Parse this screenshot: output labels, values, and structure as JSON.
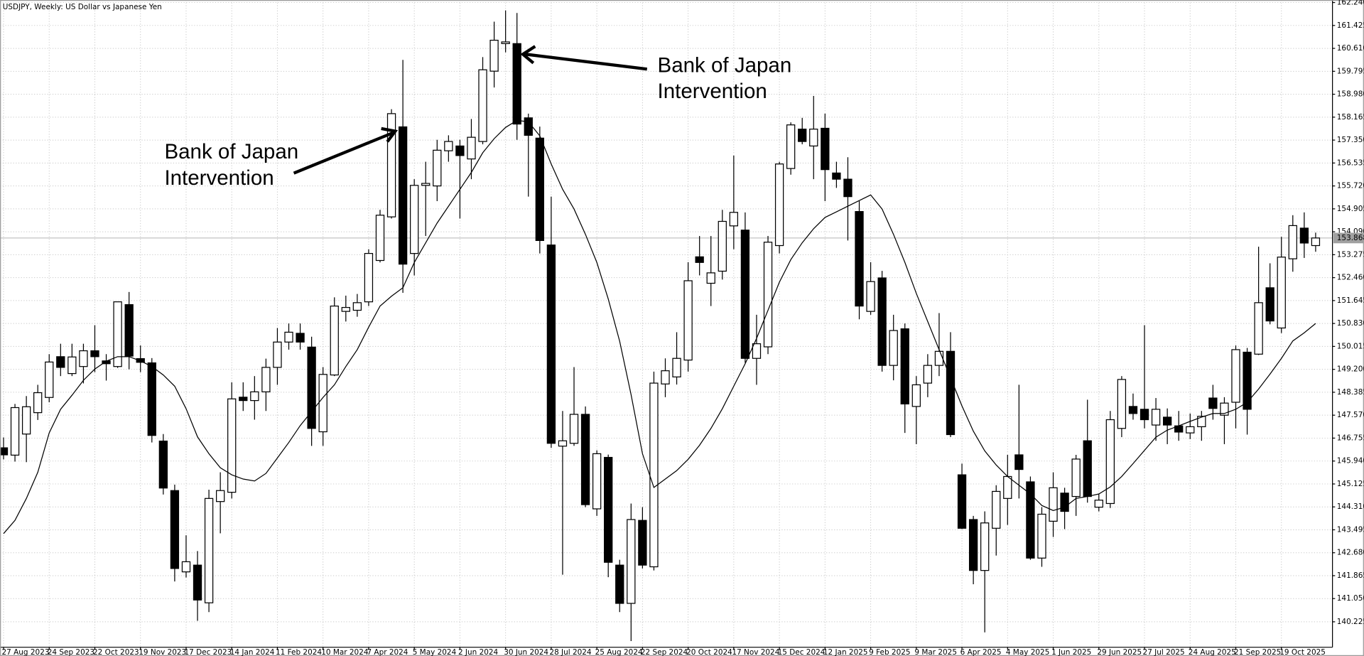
{
  "chart_data": {
    "type": "candlestick",
    "title": "USDJPY, Weekly:  US Dollar vs Japanese Yen",
    "categories": [
      "27 Aug 2023",
      null,
      null,
      null,
      "24 Sep 2023",
      null,
      null,
      null,
      "22 Oct 2023",
      null,
      null,
      null,
      "19 Nov 2023",
      null,
      null,
      null,
      "17 Dec 2023",
      null,
      null,
      null,
      "14 Jan 2024",
      null,
      null,
      null,
      "11 Feb 2024",
      null,
      null,
      null,
      "10 Mar 2024",
      null,
      null,
      null,
      "7 Apr 2024",
      null,
      null,
      null,
      "5 May 2024",
      null,
      null,
      null,
      "2 Jun 2024",
      null,
      null,
      null,
      "30 Jun 2024",
      null,
      null,
      null,
      "28 Jul 2024",
      null,
      null,
      null,
      "25 Aug 2024",
      null,
      null,
      null,
      "22 Sep 2024",
      null,
      null,
      null,
      "20 Oct 2024",
      null,
      null,
      null,
      "17 Nov 2024",
      null,
      null,
      null,
      "15 Dec 2024",
      null,
      null,
      null,
      "12 Jan 2025",
      null,
      null,
      null,
      "9 Feb 2025",
      null,
      null,
      null,
      "9 Mar 2025",
      null,
      null,
      null,
      "6 Apr 2025",
      null,
      null,
      null,
      "4 May 2025",
      null,
      null,
      null,
      "1 Jun 2025",
      null,
      null,
      null,
      "29 Jun 2025",
      null,
      null,
      null,
      "27 Jul 2025",
      null,
      null,
      null,
      "24 Aug 2025",
      null,
      null,
      null,
      "21 Sep 2025",
      null,
      null,
      null,
      "19 Oct 2025",
      null,
      null,
      null
    ],
    "open": [
      146.41,
      146.15,
      146.9,
      147.66,
      148.2,
      149.65,
      149.05,
      149.3,
      149.86,
      149.5,
      149.3,
      151.5,
      149.58,
      149.43,
      146.65,
      144.89,
      142.0,
      142.24,
      140.9,
      144.5,
      144.83,
      148.21,
      148.09,
      148.4,
      149.27,
      150.17,
      150.48,
      149.99,
      146.98,
      149.0,
      151.26,
      151.3,
      151.6,
      153.07,
      154.62,
      157.82,
      153.32,
      155.74,
      155.72,
      156.97,
      157.14,
      156.68,
      157.3,
      159.8,
      160.78,
      160.78,
      158.14,
      157.42,
      153.62,
      146.47,
      146.57,
      147.6,
      144.24,
      146.07,
      142.24,
      140.88,
      143.83,
      142.18,
      148.68,
      148.93,
      149.53,
      153.2,
      152.26,
      152.69,
      154.3,
      154.15,
      149.59,
      150.0,
      153.6,
      156.34,
      157.74,
      157.14,
      157.77,
      156.18,
      155.96,
      154.81,
      151.26,
      152.45,
      149.34,
      150.64,
      147.88,
      148.71,
      149.34,
      149.84,
      145.45,
      143.86,
      142.05,
      143.55,
      144.61,
      146.16,
      145.2,
      142.49,
      143.8,
      144.8,
      144.68,
      146.66,
      144.3,
      144.43,
      147.1,
      147.88,
      147.78,
      147.22,
      147.5,
      147.19,
      146.94,
      147.16,
      148.18,
      147.57,
      148.03,
      149.81,
      149.74,
      152.1,
      150.67,
      153.13,
      154.22,
      153.6
    ],
    "high": [
      146.78,
      147.97,
      148.25,
      148.65,
      149.74,
      150.11,
      150.11,
      150.11,
      150.77,
      149.74,
      151.6,
      151.95,
      150.05,
      149.6,
      146.9,
      145.1,
      143.3,
      142.74,
      144.92,
      145.54,
      148.74,
      148.74,
      148.96,
      149.58,
      150.67,
      150.83,
      150.83,
      150.36,
      149.28,
      151.76,
      151.82,
      151.88,
      153.47,
      154.87,
      158.45,
      160.2,
      155.96,
      156.58,
      157.36,
      157.52,
      157.36,
      158.1,
      160.3,
      161.56,
      161.96,
      161.87,
      158.29,
      157.83,
      155.34,
      147.72,
      149.28,
      147.88,
      146.32,
      146.17,
      142.43,
      144.43,
      144.3,
      149.12,
      149.59,
      150.52,
      153.01,
      153.94,
      153.94,
      154.87,
      156.8,
      154.78,
      151.14,
      153.94,
      156.58,
      157.98,
      158.14,
      158.92,
      158.29,
      156.58,
      156.74,
      155.18,
      153.01,
      152.7,
      151.14,
      150.83,
      148.96,
      149.74,
      151.2,
      150.52,
      145.85,
      143.99,
      144.15,
      145.08,
      146.16,
      148.65,
      145.39,
      144.3,
      145.54,
      144.99,
      146.16,
      148.12,
      144.77,
      147.72,
      148.96,
      148.34,
      150.77,
      148.18,
      147.81,
      147.72,
      147.63,
      147.72,
      148.65,
      148.21,
      150.05,
      149.96,
      153.56,
      152.97,
      153.91,
      154.68,
      154.78,
      154.06
    ],
    "low": [
      146.0,
      145.92,
      145.9,
      147.4,
      148.03,
      148.96,
      148.96,
      148.7,
      149.1,
      148.8,
      149.25,
      149.2,
      149.1,
      146.6,
      144.75,
      141.66,
      141.8,
      140.26,
      140.57,
      143.37,
      144.61,
      147.72,
      147.41,
      147.72,
      148.65,
      149.9,
      149.9,
      146.48,
      146.48,
      148.96,
      150.9,
      151.07,
      151.45,
      153.0,
      154.56,
      151.92,
      152.54,
      153.94,
      155.18,
      156.58,
      154.56,
      155.96,
      157.2,
      159.22,
      160.47,
      157.36,
      155.34,
      153.32,
      146.41,
      141.9,
      146.48,
      144.3,
      143.99,
      141.81,
      140.57,
      139.54,
      142.12,
      142.05,
      148.21,
      148.66,
      149.12,
      152.54,
      151.45,
      152.39,
      153.47,
      149.43,
      148.65,
      149.74,
      153.32,
      156.12,
      157.2,
      155.96,
      155.18,
      155.65,
      153.78,
      150.98,
      151.14,
      149.12,
      148.81,
      146.94,
      146.54,
      148.21,
      148.96,
      146.79,
      143.52,
      141.56,
      139.85,
      142.58,
      143.67,
      144.61,
      142.43,
      142.18,
      143.24,
      143.52,
      143.99,
      144.46,
      144.15,
      144.27,
      146.79,
      147.41,
      147.1,
      146.66,
      146.54,
      146.66,
      146.72,
      146.66,
      147.41,
      146.54,
      147.1,
      146.88,
      149.71,
      150.8,
      150.49,
      152.67,
      153.16,
      153.38
    ],
    "close": [
      146.16,
      147.84,
      147.87,
      148.37,
      149.46,
      149.27,
      149.64,
      149.86,
      149.65,
      149.4,
      151.6,
      149.67,
      149.45,
      146.85,
      144.98,
      142.12,
      142.36,
      141.0,
      144.61,
      144.89,
      148.15,
      148.09,
      148.4,
      149.27,
      150.17,
      150.52,
      150.17,
      147.1,
      149.02,
      151.45,
      151.4,
      151.57,
      153.32,
      154.68,
      158.29,
      152.94,
      155.74,
      155.81,
      156.99,
      157.3,
      156.8,
      157.45,
      159.85,
      160.9,
      160.84,
      157.92,
      157.52,
      153.78,
      146.57,
      146.66,
      147.6,
      144.39,
      146.2,
      142.34,
      140.88,
      143.86,
      142.24,
      148.71,
      149.15,
      149.59,
      152.35,
      153.0,
      152.63,
      154.46,
      154.78,
      149.59,
      150.11,
      153.72,
      156.5,
      157.89,
      157.3,
      157.74,
      156.3,
      155.96,
      155.34,
      151.45,
      152.32,
      149.34,
      150.58,
      147.97,
      148.65,
      149.34,
      149.84,
      146.88,
      143.55,
      142.05,
      143.74,
      144.86,
      145.39,
      145.64,
      142.49,
      144.05,
      144.99,
      144.15,
      146.01,
      144.68,
      144.55,
      147.41,
      148.84,
      147.63,
      147.41,
      147.78,
      147.22,
      146.97,
      147.16,
      147.53,
      147.81,
      148.0,
      149.9,
      147.78,
      151.57,
      150.92,
      153.19,
      154.31,
      153.69,
      153.87
    ],
    "moving_average": {
      "color": "#000000",
      "values": [
        143.36,
        143.83,
        144.61,
        145.54,
        146.94,
        147.78,
        148.28,
        148.81,
        149.21,
        149.49,
        149.65,
        149.65,
        149.5,
        149.3,
        149.0,
        148.6,
        147.8,
        146.8,
        146.2,
        145.7,
        145.45,
        145.3,
        145.23,
        145.5,
        146.05,
        146.6,
        147.2,
        147.7,
        148.2,
        148.65,
        149.3,
        149.9,
        150.7,
        151.45,
        151.8,
        152.1,
        153.0,
        153.7,
        154.4,
        155.0,
        155.6,
        156.2,
        156.9,
        157.4,
        157.8,
        158.05,
        158.0,
        157.5,
        156.5,
        155.6,
        154.9,
        154.0,
        153.0,
        151.7,
        150.2,
        148.3,
        146.2,
        145.0,
        145.3,
        145.6,
        146.0,
        146.5,
        147.1,
        147.8,
        148.6,
        149.4,
        150.3,
        151.3,
        152.3,
        153.1,
        153.7,
        154.2,
        154.6,
        154.8,
        155.0,
        155.2,
        155.4,
        154.9,
        154.0,
        153.0,
        151.9,
        150.9,
        149.9,
        148.9,
        147.9,
        147.0,
        146.3,
        145.8,
        145.39,
        145.08,
        144.77,
        144.36,
        144.18,
        144.3,
        144.61,
        144.68,
        144.77,
        145.02,
        145.39,
        145.85,
        146.32,
        146.79,
        147.04,
        147.19,
        147.35,
        147.5,
        147.63,
        147.63,
        147.78,
        148.03,
        148.5,
        149.03,
        149.59,
        150.21,
        150.5,
        150.83
      ]
    },
    "up_color": "#ffffff",
    "down_color": "#000000",
    "last_price": 153.868,
    "ylim": [
      139.32,
      162.33
    ],
    "yticks": [
      {
        "value": 162.24,
        "label": "162.240"
      },
      {
        "value": 161.425,
        "label": "161.425"
      },
      {
        "value": 160.61,
        "label": "160.610"
      },
      159.795,
      {
        "value": 158.98,
        "label": "158.980"
      },
      158.165,
      {
        "value": 157.35,
        "label": "157.350"
      },
      156.535,
      {
        "value": 155.72,
        "label": "155.720"
      },
      154.905,
      {
        "value": 154.09,
        "label": "154.090"
      },
      153.275,
      {
        "value": 152.46,
        "label": "152.460"
      },
      151.645,
      {
        "value": 150.83,
        "label": "150.830"
      },
      150.015,
      {
        "value": 149.2,
        "label": "149.200"
      },
      148.385,
      {
        "value": 147.57,
        "label": "147.570"
      },
      146.755,
      {
        "value": 145.94,
        "label": "145.940"
      },
      145.125,
      {
        "value": 144.31,
        "label": "144.310"
      },
      143.495,
      {
        "value": 142.68,
        "label": "142.680"
      },
      141.865,
      {
        "value": 141.05,
        "label": "141.050"
      },
      140.225
    ],
    "grid": true,
    "annotations": [
      {
        "lines": [
          "Bank of Japan",
          "Intervention"
        ]
      },
      {
        "lines": [
          "Bank of Japan",
          "Intervention"
        ]
      }
    ]
  }
}
